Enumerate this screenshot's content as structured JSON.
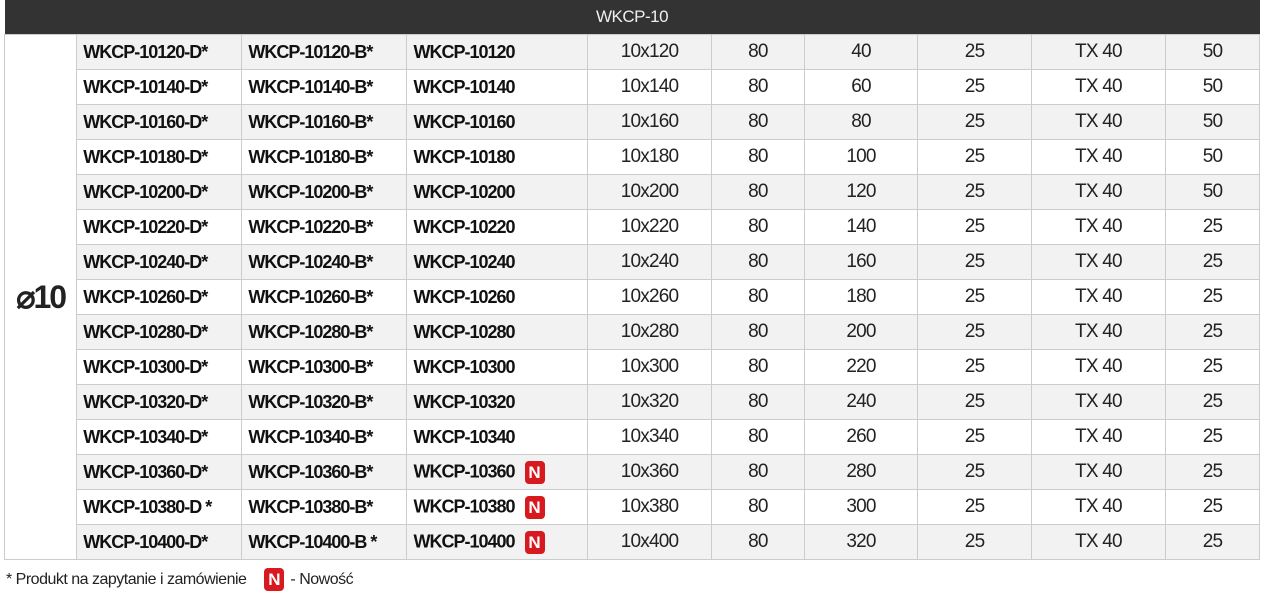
{
  "header": {
    "title": "WKCP-10"
  },
  "diameter_label": "⌀10",
  "new_badge": "N",
  "accent_color": "#d71920",
  "rows": [
    {
      "d": "WKCP-10120-D*",
      "b": "WKCP-10120-B*",
      "code": "WKCP-10120",
      "new": false,
      "size": "10x120",
      "c1": "80",
      "c2": "40",
      "c3": "25",
      "drive": "TX 40",
      "qty": "50"
    },
    {
      "d": "WKCP-10140-D*",
      "b": "WKCP-10140-B*",
      "code": "WKCP-10140",
      "new": false,
      "size": "10x140",
      "c1": "80",
      "c2": "60",
      "c3": "25",
      "drive": "TX 40",
      "qty": "50"
    },
    {
      "d": "WKCP-10160-D*",
      "b": "WKCP-10160-B*",
      "code": "WKCP-10160",
      "new": false,
      "size": "10x160",
      "c1": "80",
      "c2": "80",
      "c3": "25",
      "drive": "TX 40",
      "qty": "50"
    },
    {
      "d": "WKCP-10180-D*",
      "b": "WKCP-10180-B*",
      "code": "WKCP-10180",
      "new": false,
      "size": "10x180",
      "c1": "80",
      "c2": "100",
      "c3": "25",
      "drive": "TX 40",
      "qty": "50"
    },
    {
      "d": "WKCP-10200-D*",
      "b": "WKCP-10200-B*",
      "code": "WKCP-10200",
      "new": false,
      "size": "10x200",
      "c1": "80",
      "c2": "120",
      "c3": "25",
      "drive": "TX 40",
      "qty": "50"
    },
    {
      "d": "WKCP-10220-D*",
      "b": "WKCP-10220-B*",
      "code": "WKCP-10220",
      "new": false,
      "size": "10x220",
      "c1": "80",
      "c2": "140",
      "c3": "25",
      "drive": "TX 40",
      "qty": "25"
    },
    {
      "d": "WKCP-10240-D*",
      "b": "WKCP-10240-B*",
      "code": "WKCP-10240",
      "new": false,
      "size": "10x240",
      "c1": "80",
      "c2": "160",
      "c3": "25",
      "drive": "TX 40",
      "qty": "25"
    },
    {
      "d": "WKCP-10260-D*",
      "b": "WKCP-10260-B*",
      "code": "WKCP-10260",
      "new": false,
      "size": "10x260",
      "c1": "80",
      "c2": "180",
      "c3": "25",
      "drive": "TX 40",
      "qty": "25"
    },
    {
      "d": "WKCP-10280-D*",
      "b": "WKCP-10280-B*",
      "code": "WKCP-10280",
      "new": false,
      "size": "10x280",
      "c1": "80",
      "c2": "200",
      "c3": "25",
      "drive": "TX 40",
      "qty": "25"
    },
    {
      "d": "WKCP-10300-D*",
      "b": "WKCP-10300-B*",
      "code": "WKCP-10300",
      "new": false,
      "size": "10x300",
      "c1": "80",
      "c2": "220",
      "c3": "25",
      "drive": "TX 40",
      "qty": "25"
    },
    {
      "d": "WKCP-10320-D*",
      "b": "WKCP-10320-B*",
      "code": "WKCP-10320",
      "new": false,
      "size": "10x320",
      "c1": "80",
      "c2": "240",
      "c3": "25",
      "drive": "TX 40",
      "qty": "25"
    },
    {
      "d": "WKCP-10340-D*",
      "b": "WKCP-10340-B*",
      "code": "WKCP-10340",
      "new": false,
      "size": "10x340",
      "c1": "80",
      "c2": "260",
      "c3": "25",
      "drive": "TX 40",
      "qty": "25"
    },
    {
      "d": "WKCP-10360-D*",
      "b": "WKCP-10360-B*",
      "code": "WKCP-10360",
      "new": true,
      "size": "10x360",
      "c1": "80",
      "c2": "280",
      "c3": "25",
      "drive": "TX 40",
      "qty": "25"
    },
    {
      "d": "WKCP-10380-D *",
      "b": "WKCP-10380-B*",
      "code": "WKCP-10380",
      "new": true,
      "size": "10x380",
      "c1": "80",
      "c2": "300",
      "c3": "25",
      "drive": "TX 40",
      "qty": "25"
    },
    {
      "d": "WKCP-10400-D*",
      "b": "WKCP-10400-B *",
      "code": "WKCP-10400",
      "new": true,
      "size": "10x400",
      "c1": "80",
      "c2": "320",
      "c3": "25",
      "drive": "TX 40",
      "qty": "25"
    }
  ],
  "footer": {
    "note": "* Produkt na zapytanie i zamówienie",
    "new_label": "- Nowość"
  }
}
